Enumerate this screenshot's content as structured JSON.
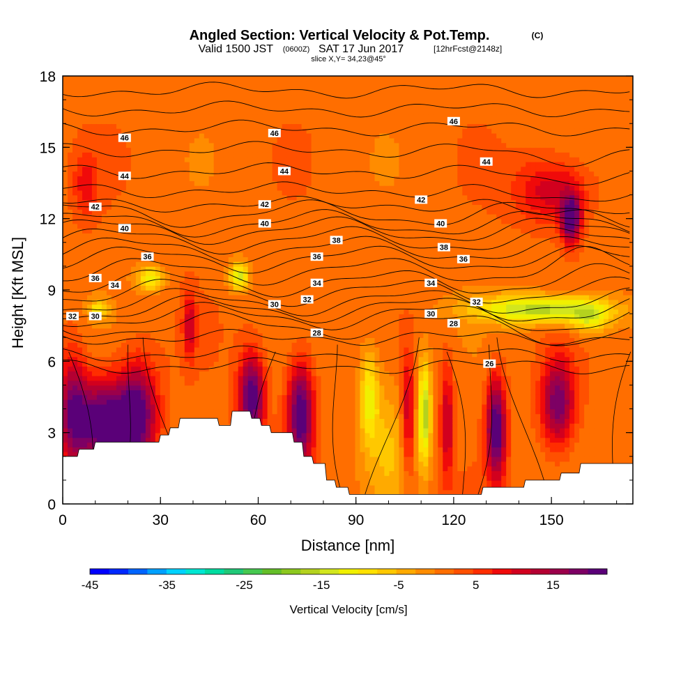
{
  "header": {
    "title": "Angled Section: Vertical Velocity & Pot.Temp.",
    "title_suffix": "(C)",
    "valid_prefix": "Valid 1500 JST",
    "valid_zulu": "(0600Z)",
    "valid_date": "SAT 17 Jun 2017",
    "fcst": "[12hrFcst@2148z]",
    "slice": "slice X,Y= 34,23@45°"
  },
  "chart_data": {
    "type": "heatmap",
    "xlabel": "Distance [nm]",
    "ylabel": "Height [Kft MSL]",
    "xlim": [
      0,
      175
    ],
    "ylim": [
      0,
      18
    ],
    "x_ticks": [
      0,
      30,
      60,
      90,
      120,
      150
    ],
    "y_ticks": [
      0,
      3,
      6,
      9,
      12,
      15,
      18
    ],
    "colorbar": {
      "label": "Vertical Velocity [cm/s]",
      "min": -45,
      "max": 22,
      "tick_labels": [
        -45,
        -35,
        -25,
        -15,
        -5,
        5,
        15
      ],
      "colors": [
        "#0000ff",
        "#0028ff",
        "#0064ff",
        "#00a0ff",
        "#00d2ff",
        "#00e6d2",
        "#00dca0",
        "#20c878",
        "#46c850",
        "#64be28",
        "#8cc81e",
        "#b4d21e",
        "#d2e61e",
        "#f0f000",
        "#ffe100",
        "#ffc800",
        "#ffaa00",
        "#ff8c00",
        "#ff6e00",
        "#ff5000",
        "#ff2d00",
        "#f00a0a",
        "#d2001e",
        "#b40032",
        "#9b004b",
        "#7d0064",
        "#5a0078"
      ]
    },
    "terrain_profile": [
      [
        0,
        2.0
      ],
      [
        5,
        2.0
      ],
      [
        5,
        2.3
      ],
      [
        10,
        2.3
      ],
      [
        10,
        2.6
      ],
      [
        50,
        2.6
      ],
      [
        50,
        2.6
      ],
      [
        25,
        2.6
      ],
      [
        25,
        2.6
      ],
      [
        30,
        2.6
      ],
      [
        30,
        2.9
      ],
      [
        33,
        2.9
      ],
      [
        33,
        3.2
      ],
      [
        36,
        3.2
      ],
      [
        36,
        3.6
      ],
      [
        48,
        3.6
      ],
      [
        48,
        3.3
      ],
      [
        52,
        3.3
      ],
      [
        52,
        3.9
      ],
      [
        58,
        3.9
      ],
      [
        58,
        3.6
      ],
      [
        61,
        3.6
      ],
      [
        61,
        3.3
      ],
      [
        64,
        3.3
      ],
      [
        64,
        3.0
      ],
      [
        71,
        3.0
      ],
      [
        71,
        2.6
      ],
      [
        74,
        2.6
      ],
      [
        74,
        2.0
      ],
      [
        77,
        2.0
      ],
      [
        77,
        1.7
      ],
      [
        81,
        1.7
      ],
      [
        81,
        1.0
      ],
      [
        84,
        1.0
      ],
      [
        84,
        0.7
      ],
      [
        88,
        0.7
      ],
      [
        88,
        0.4
      ],
      [
        96,
        0.4
      ],
      [
        96,
        0.4
      ],
      [
        129,
        0.4
      ],
      [
        129,
        0.7
      ],
      [
        142,
        0.7
      ],
      [
        142,
        1.0
      ],
      [
        153,
        1.0
      ],
      [
        153,
        1.3
      ],
      [
        159,
        1.3
      ],
      [
        159,
        1.7
      ],
      [
        175,
        1.7
      ]
    ],
    "vertical_velocity_features": [
      {
        "x": 12,
        "y": 3.5,
        "sx": 9,
        "sy": 1.8,
        "w": 22
      },
      {
        "x": 23,
        "y": 3.8,
        "sx": 6,
        "sy": 2.2,
        "w": 19
      },
      {
        "x": 3,
        "y": 4.0,
        "sx": 4,
        "sy": 2.5,
        "w": 14
      },
      {
        "x": 58,
        "y": 4.5,
        "sx": 4,
        "sy": 1.8,
        "w": 22
      },
      {
        "x": 73,
        "y": 3.8,
        "sx": 4,
        "sy": 2.2,
        "w": 22
      },
      {
        "x": 39,
        "y": 7.5,
        "sx": 2,
        "sy": 1.4,
        "w": 10
      },
      {
        "x": 106,
        "y": 3.8,
        "sx": 2,
        "sy": 2.5,
        "w": 12
      },
      {
        "x": 118,
        "y": 3.5,
        "sx": 2,
        "sy": 2.5,
        "w": 12
      },
      {
        "x": 133,
        "y": 3.2,
        "sx": 3,
        "sy": 2.2,
        "w": 22
      },
      {
        "x": 152,
        "y": 4.3,
        "sx": 5,
        "sy": 1.8,
        "w": 18
      },
      {
        "x": 150,
        "y": 13.2,
        "sx": 11,
        "sy": 1.4,
        "w": 11
      },
      {
        "x": 156,
        "y": 12.0,
        "sx": 3,
        "sy": 1.0,
        "w": 22
      },
      {
        "x": 7,
        "y": 13.5,
        "sx": 4,
        "sy": 1.4,
        "w": 7
      },
      {
        "x": 94,
        "y": 4.5,
        "sx": 3,
        "sy": 2.0,
        "w": -12
      },
      {
        "x": 111,
        "y": 3.8,
        "sx": 2,
        "sy": 2.2,
        "w": -18
      },
      {
        "x": 147,
        "y": 8.2,
        "sx": 20,
        "sy": 0.6,
        "w": -18
      },
      {
        "x": 162,
        "y": 7.8,
        "sx": 6,
        "sy": 0.7,
        "w": -10
      },
      {
        "x": 27,
        "y": 9.5,
        "sx": 4,
        "sy": 0.5,
        "w": -13
      },
      {
        "x": 54,
        "y": 9.6,
        "sx": 3,
        "sy": 0.6,
        "w": -15
      },
      {
        "x": 11,
        "y": 8.2,
        "sx": 3,
        "sy": 0.4,
        "w": -10
      },
      {
        "x": 100,
        "y": 2.5,
        "sx": 6,
        "sy": 3.0,
        "w": -6
      }
    ],
    "potential_temperature_contours": [
      {
        "value": 26,
        "label": "26",
        "y_ref": 5.8
      },
      {
        "value": 27,
        "label": "",
        "y_ref": 6.3
      },
      {
        "value": 28,
        "label": "28",
        "y_ref": 7.0
      },
      {
        "value": 29,
        "label": "",
        "y_ref": 7.5
      },
      {
        "value": 30,
        "label": "30",
        "y_ref": 7.9
      },
      {
        "value": 31,
        "label": "",
        "y_ref": 8.2
      },
      {
        "value": 32,
        "label": "32",
        "y_ref": 8.5
      },
      {
        "value": 33,
        "label": "",
        "y_ref": 8.9
      },
      {
        "value": 34,
        "label": "34",
        "y_ref": 9.3
      },
      {
        "value": 35,
        "label": "",
        "y_ref": 9.8
      },
      {
        "value": 36,
        "label": "36",
        "y_ref": 10.3
      },
      {
        "value": 37,
        "label": "",
        "y_ref": 10.7
      },
      {
        "value": 38,
        "label": "38",
        "y_ref": 11.1
      },
      {
        "value": 39,
        "label": "",
        "y_ref": 11.5
      },
      {
        "value": 40,
        "label": "40",
        "y_ref": 11.8
      },
      {
        "value": 41,
        "label": "",
        "y_ref": 12.2
      },
      {
        "value": 42,
        "label": "42",
        "y_ref": 12.6
      },
      {
        "value": 43,
        "label": "",
        "y_ref": 13.2
      },
      {
        "value": 44,
        "label": "44",
        "y_ref": 14.0
      },
      {
        "value": 45,
        "label": "",
        "y_ref": 14.9
      },
      {
        "value": 46,
        "label": "46",
        "y_ref": 15.8
      },
      {
        "value": 47,
        "label": "",
        "y_ref": 16.6
      },
      {
        "value": 48,
        "label": "",
        "y_ref": 17.4
      }
    ],
    "contour_label_positions": [
      {
        "label": "46",
        "x": 19,
        "y": 15.4
      },
      {
        "label": "46",
        "x": 65,
        "y": 15.6
      },
      {
        "label": "46",
        "x": 120,
        "y": 16.1
      },
      {
        "label": "44",
        "x": 19,
        "y": 13.8
      },
      {
        "label": "44",
        "x": 68,
        "y": 14.0
      },
      {
        "label": "44",
        "x": 130,
        "y": 14.4
      },
      {
        "label": "42",
        "x": 10,
        "y": 12.5
      },
      {
        "label": "42",
        "x": 62,
        "y": 12.6
      },
      {
        "label": "42",
        "x": 110,
        "y": 12.8
      },
      {
        "label": "40",
        "x": 19,
        "y": 11.6
      },
      {
        "label": "40",
        "x": 62,
        "y": 11.8
      },
      {
        "label": "40",
        "x": 116,
        "y": 11.8
      },
      {
        "label": "36",
        "x": 26,
        "y": 10.4
      },
      {
        "label": "36",
        "x": 78,
        "y": 10.4
      },
      {
        "label": "36",
        "x": 123,
        "y": 10.3
      },
      {
        "label": "38",
        "x": 84,
        "y": 11.1
      },
      {
        "label": "38",
        "x": 117,
        "y": 10.8
      },
      {
        "label": "36",
        "x": 10,
        "y": 9.5
      },
      {
        "label": "34",
        "x": 16,
        "y": 9.2
      },
      {
        "label": "34",
        "x": 78,
        "y": 9.3
      },
      {
        "label": "34",
        "x": 113,
        "y": 9.3
      },
      {
        "label": "32",
        "x": 75,
        "y": 8.6
      },
      {
        "label": "32",
        "x": 127,
        "y": 8.5
      },
      {
        "label": "32",
        "x": 3,
        "y": 7.9
      },
      {
        "label": "30",
        "x": 10,
        "y": 7.9
      },
      {
        "label": "30",
        "x": 65,
        "y": 8.4
      },
      {
        "label": "30",
        "x": 113,
        "y": 8.0
      },
      {
        "label": "28",
        "x": 78,
        "y": 7.2
      },
      {
        "label": "28",
        "x": 120,
        "y": 7.6
      },
      {
        "label": "26",
        "x": 131,
        "y": 5.9
      }
    ]
  }
}
